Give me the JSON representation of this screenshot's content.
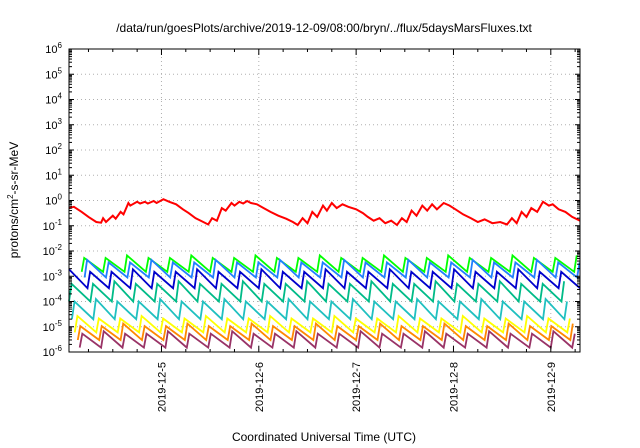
{
  "chart_data": {
    "type": "line",
    "title": "/data/run/goesPlots/archive/2019-12-09/08:00/bryn/../flux/5daysMarsFluxes.txt",
    "xlabel": "Coordinated Universal Time (UTC)",
    "ylabel": {
      "pre": "protons/cm",
      "sup": "2",
      "post": "-s-sr-MeV"
    },
    "yscale": "log",
    "ylim_exp": [
      -6,
      6
    ],
    "y_ticks": [
      {
        "base": "10",
        "exp": "-6"
      },
      {
        "base": "10",
        "exp": "-5"
      },
      {
        "base": "10",
        "exp": "-4"
      },
      {
        "base": "10",
        "exp": "-3"
      },
      {
        "base": "10",
        "exp": "-2"
      },
      {
        "base": "10",
        "exp": "-1"
      },
      {
        "base": "10",
        "exp": "0"
      },
      {
        "base": "10",
        "exp": "1"
      },
      {
        "base": "10",
        "exp": "2"
      },
      {
        "base": "10",
        "exp": "3"
      },
      {
        "base": "10",
        "exp": "4"
      },
      {
        "base": "10",
        "exp": "5"
      },
      {
        "base": "10",
        "exp": "6"
      }
    ],
    "xlim_days": [
      4.05,
      9.3
    ],
    "x_ticks": [
      {
        "label": "2019-12-5",
        "day": 5
      },
      {
        "label": "2019-12-6",
        "day": 6
      },
      {
        "label": "2019-12-7",
        "day": 7
      },
      {
        "label": "2019-12-8",
        "day": 8
      },
      {
        "label": "2019-12-9",
        "day": 9
      }
    ],
    "grid": true,
    "legend": "none",
    "series": [
      {
        "color": "#ff0000",
        "values": [
          [
            4.05,
            -0.3
          ],
          [
            4.1,
            -0.25
          ],
          [
            4.18,
            -0.45
          ],
          [
            4.25,
            -0.65
          ],
          [
            4.33,
            -0.85
          ],
          [
            4.38,
            -0.88
          ],
          [
            4.4,
            -0.7
          ],
          [
            4.43,
            -0.85
          ],
          [
            4.5,
            -0.6
          ],
          [
            4.53,
            -0.72
          ],
          [
            4.58,
            -0.45
          ],
          [
            4.61,
            -0.55
          ],
          [
            4.66,
            -0.1
          ],
          [
            4.68,
            -0.2
          ],
          [
            4.75,
            -0.05
          ],
          [
            4.78,
            -0.12
          ],
          [
            4.83,
            -0.05
          ],
          [
            4.86,
            -0.12
          ],
          [
            4.92,
            -0.02
          ],
          [
            4.95,
            -0.1
          ],
          [
            5.02,
            0.05
          ],
          [
            5.08,
            -0.05
          ],
          [
            5.15,
            -0.15
          ],
          [
            5.22,
            -0.35
          ],
          [
            5.28,
            -0.5
          ],
          [
            5.35,
            -0.7
          ],
          [
            5.43,
            -0.85
          ],
          [
            5.48,
            -0.95
          ],
          [
            5.52,
            -0.7
          ],
          [
            5.57,
            -0.8
          ],
          [
            5.62,
            -0.3
          ],
          [
            5.66,
            -0.4
          ],
          [
            5.72,
            -0.1
          ],
          [
            5.75,
            -0.2
          ],
          [
            5.8,
            -0.05
          ],
          [
            5.84,
            -0.12
          ],
          [
            5.88,
            -0.02
          ],
          [
            5.92,
            -0.1
          ],
          [
            5.98,
            -0.15
          ],
          [
            6.05,
            -0.3
          ],
          [
            6.12,
            -0.45
          ],
          [
            6.2,
            -0.6
          ],
          [
            6.28,
            -0.72
          ],
          [
            6.35,
            -0.85
          ],
          [
            6.4,
            -0.97
          ],
          [
            6.45,
            -0.7
          ],
          [
            6.5,
            -0.9
          ],
          [
            6.55,
            -0.45
          ],
          [
            6.6,
            -0.65
          ],
          [
            6.66,
            -0.2
          ],
          [
            6.7,
            -0.4
          ],
          [
            6.75,
            -0.1
          ],
          [
            6.8,
            -0.3
          ],
          [
            6.86,
            -0.15
          ],
          [
            6.92,
            -0.25
          ],
          [
            7.0,
            -0.35
          ],
          [
            7.07,
            -0.5
          ],
          [
            7.12,
            -0.65
          ],
          [
            7.18,
            -0.8
          ],
          [
            7.24,
            -0.7
          ],
          [
            7.3,
            -0.9
          ],
          [
            7.36,
            -0.8
          ],
          [
            7.42,
            -0.97
          ],
          [
            7.47,
            -0.7
          ],
          [
            7.52,
            -0.85
          ],
          [
            7.57,
            -0.4
          ],
          [
            7.62,
            -0.6
          ],
          [
            7.68,
            -0.2
          ],
          [
            7.73,
            -0.4
          ],
          [
            7.78,
            -0.15
          ],
          [
            7.83,
            -0.35
          ],
          [
            7.9,
            -0.1
          ],
          [
            7.96,
            -0.2
          ],
          [
            8.02,
            -0.35
          ],
          [
            8.1,
            -0.55
          ],
          [
            8.18,
            -0.7
          ],
          [
            8.25,
            -0.85
          ],
          [
            8.32,
            -0.75
          ],
          [
            8.4,
            -0.9
          ],
          [
            8.48,
            -0.85
          ],
          [
            8.55,
            -0.95
          ],
          [
            8.6,
            -0.7
          ],
          [
            8.65,
            -0.9
          ],
          [
            8.7,
            -0.45
          ],
          [
            8.75,
            -0.65
          ],
          [
            8.8,
            -0.3
          ],
          [
            8.86,
            -0.45
          ],
          [
            8.92,
            -0.05
          ],
          [
            8.98,
            -0.2
          ],
          [
            9.02,
            -0.15
          ],
          [
            9.08,
            -0.35
          ],
          [
            9.15,
            -0.45
          ],
          [
            9.22,
            -0.65
          ],
          [
            9.3,
            -0.8
          ]
        ]
      },
      {
        "color": "#00ff00",
        "base": -2.55,
        "amp": 0.55,
        "period": 0.22,
        "phase": 0.0
      },
      {
        "color": "#2080ff",
        "base": -2.75,
        "amp": 0.6,
        "period": 0.22,
        "phase": 0.03
      },
      {
        "color": "#0000cc",
        "base": -3.15,
        "amp": 0.65,
        "period": 0.22,
        "phase": 0.06
      },
      {
        "color": "#00bb88",
        "base": -3.65,
        "amp": 0.7,
        "period": 0.22,
        "phase": 0.09
      },
      {
        "color": "#20c0c0",
        "base": -4.35,
        "amp": 0.7,
        "period": 0.22,
        "phase": 0.12
      },
      {
        "color": "#ffff00",
        "base": -4.95,
        "amp": 0.55,
        "period": 0.22,
        "phase": 0.15
      },
      {
        "color": "#ff8800",
        "base": -5.25,
        "amp": 0.55,
        "period": 0.22,
        "phase": 0.18
      },
      {
        "color": "#993366",
        "base": -5.55,
        "amp": 0.55,
        "period": 0.22,
        "phase": 0.2
      }
    ]
  }
}
